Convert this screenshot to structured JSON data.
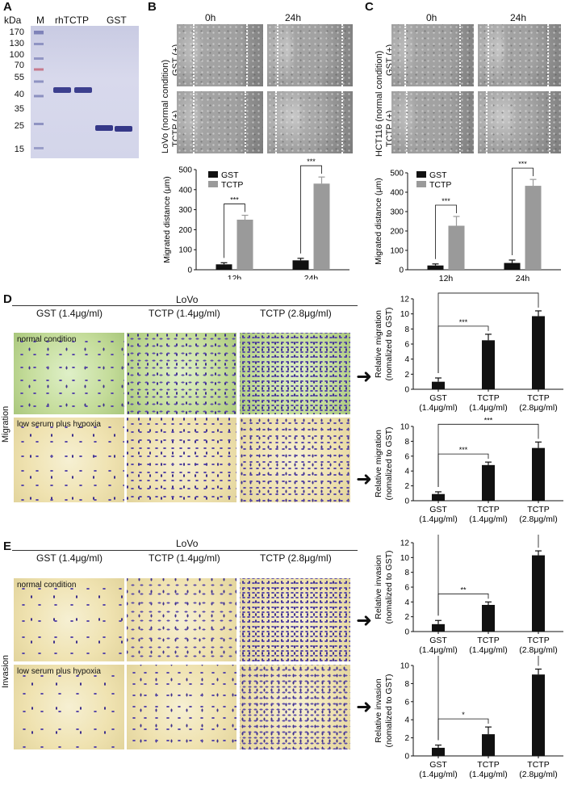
{
  "panel_a": {
    "label": "A",
    "kda": "kDa",
    "lanes": [
      "M",
      "rhTCTP",
      "GST"
    ],
    "markers": [
      "170",
      "130",
      "100",
      "70",
      "55",
      "40",
      "35",
      "25",
      "15"
    ]
  },
  "panel_b": {
    "label": "B",
    "time_cols": [
      "0h",
      "24h"
    ],
    "cell_line": "LoVo (normal condition)",
    "rows": [
      "GST (+)",
      "TCTP (+)"
    ]
  },
  "panel_c": {
    "label": "C",
    "time_cols": [
      "0h",
      "24h"
    ],
    "cell_line": "HCT116 (normal condition)",
    "rows": [
      "GST (+)",
      "TCTP (+)"
    ]
  },
  "panel_d": {
    "label": "D",
    "title": "LoVo",
    "cols": [
      "GST (1.4μg/ml)",
      "TCTP (1.4μg/ml)",
      "TCTP (2.8μg/ml)"
    ],
    "row_label": "Migration",
    "conditions": [
      "normal condition",
      "low serum plus hypoxia"
    ]
  },
  "panel_e": {
    "label": "E",
    "title": "LoVo",
    "cols": [
      "GST (1.4μg/ml)",
      "TCTP (1.4μg/ml)",
      "TCTP (2.8μg/ml)"
    ],
    "row_label": "Invasion",
    "conditions": [
      "normal condition",
      "low serum plus hypoxia"
    ]
  },
  "chart_data": [
    {
      "id": "B",
      "type": "bar",
      "ylabel": "Migrated distance (μm)",
      "categories": [
        "12h",
        "24h"
      ],
      "series": [
        {
          "name": "GST",
          "values": [
            27,
            47
          ],
          "errors": [
            8,
            10
          ],
          "color": "#111111"
        },
        {
          "name": "TCTP",
          "values": [
            250,
            430
          ],
          "errors": [
            22,
            33
          ],
          "color": "#9a9a9a"
        }
      ],
      "ylim": [
        0,
        500
      ],
      "yticks": [
        0,
        100,
        200,
        300,
        400,
        500
      ],
      "significance": [
        "***",
        "***"
      ]
    },
    {
      "id": "C",
      "type": "bar",
      "ylabel": "Migrated distance (μm)",
      "categories": [
        "12h",
        "24h"
      ],
      "series": [
        {
          "name": "GST",
          "values": [
            22,
            35
          ],
          "errors": [
            8,
            15
          ],
          "color": "#111111"
        },
        {
          "name": "TCTP",
          "values": [
            227,
            433
          ],
          "errors": [
            48,
            33
          ],
          "color": "#9a9a9a"
        }
      ],
      "ylim": [
        0,
        500
      ],
      "yticks": [
        0,
        100,
        200,
        300,
        400,
        500
      ],
      "significance": [
        "***",
        "***"
      ]
    },
    {
      "id": "D-normal",
      "type": "bar",
      "ylabel": "Relative migration (nomalized to GST)",
      "categories": [
        "GST (1.4μg/ml)",
        "TCTP (1.4μg/ml)",
        "TCTP (2.8μg/ml)"
      ],
      "values": [
        1.0,
        6.5,
        9.7
      ],
      "errors": [
        0.5,
        0.8,
        0.7
      ],
      "ylim": [
        0,
        12
      ],
      "yticks": [
        0,
        2,
        4,
        6,
        8,
        10,
        12
      ],
      "significance": [
        "***",
        "***"
      ]
    },
    {
      "id": "D-hypoxia",
      "type": "bar",
      "ylabel": "Relative migration (nomalized to GST)",
      "categories": [
        "GST (1.4μg/ml)",
        "TCTP (1.4μg/ml)",
        "TCTP (2.8μg/ml)"
      ],
      "values": [
        0.9,
        4.8,
        7.1
      ],
      "errors": [
        0.3,
        0.4,
        0.8
      ],
      "ylim": [
        0,
        10
      ],
      "yticks": [
        0,
        2,
        4,
        6,
        8,
        10
      ],
      "significance": [
        "***",
        "***"
      ]
    },
    {
      "id": "E-normal",
      "type": "bar",
      "ylabel": "Relative invasion (nomalized to GST)",
      "categories": [
        "GST (1.4μg/ml)",
        "TCTP (1.4μg/ml)",
        "TCTP (2.8μg/ml)"
      ],
      "values": [
        1.0,
        3.6,
        10.3
      ],
      "errors": [
        0.5,
        0.4,
        0.6
      ],
      "ylim": [
        0,
        12
      ],
      "yticks": [
        0,
        2,
        4,
        6,
        8,
        10,
        12
      ],
      "significance": [
        "**",
        "***"
      ]
    },
    {
      "id": "E-hypoxia",
      "type": "bar",
      "ylabel": "Relative invasion (nomalized to GST)",
      "categories": [
        "GST (1.4μg/ml)",
        "TCTP (1.4μg/ml)",
        "TCTP (2.8μg/ml)"
      ],
      "values": [
        0.9,
        2.4,
        9.0
      ],
      "errors": [
        0.3,
        0.8,
        0.6
      ],
      "ylim": [
        0,
        10
      ],
      "yticks": [
        0,
        2,
        4,
        6,
        8,
        10
      ],
      "significance": [
        "*",
        "***"
      ]
    }
  ]
}
